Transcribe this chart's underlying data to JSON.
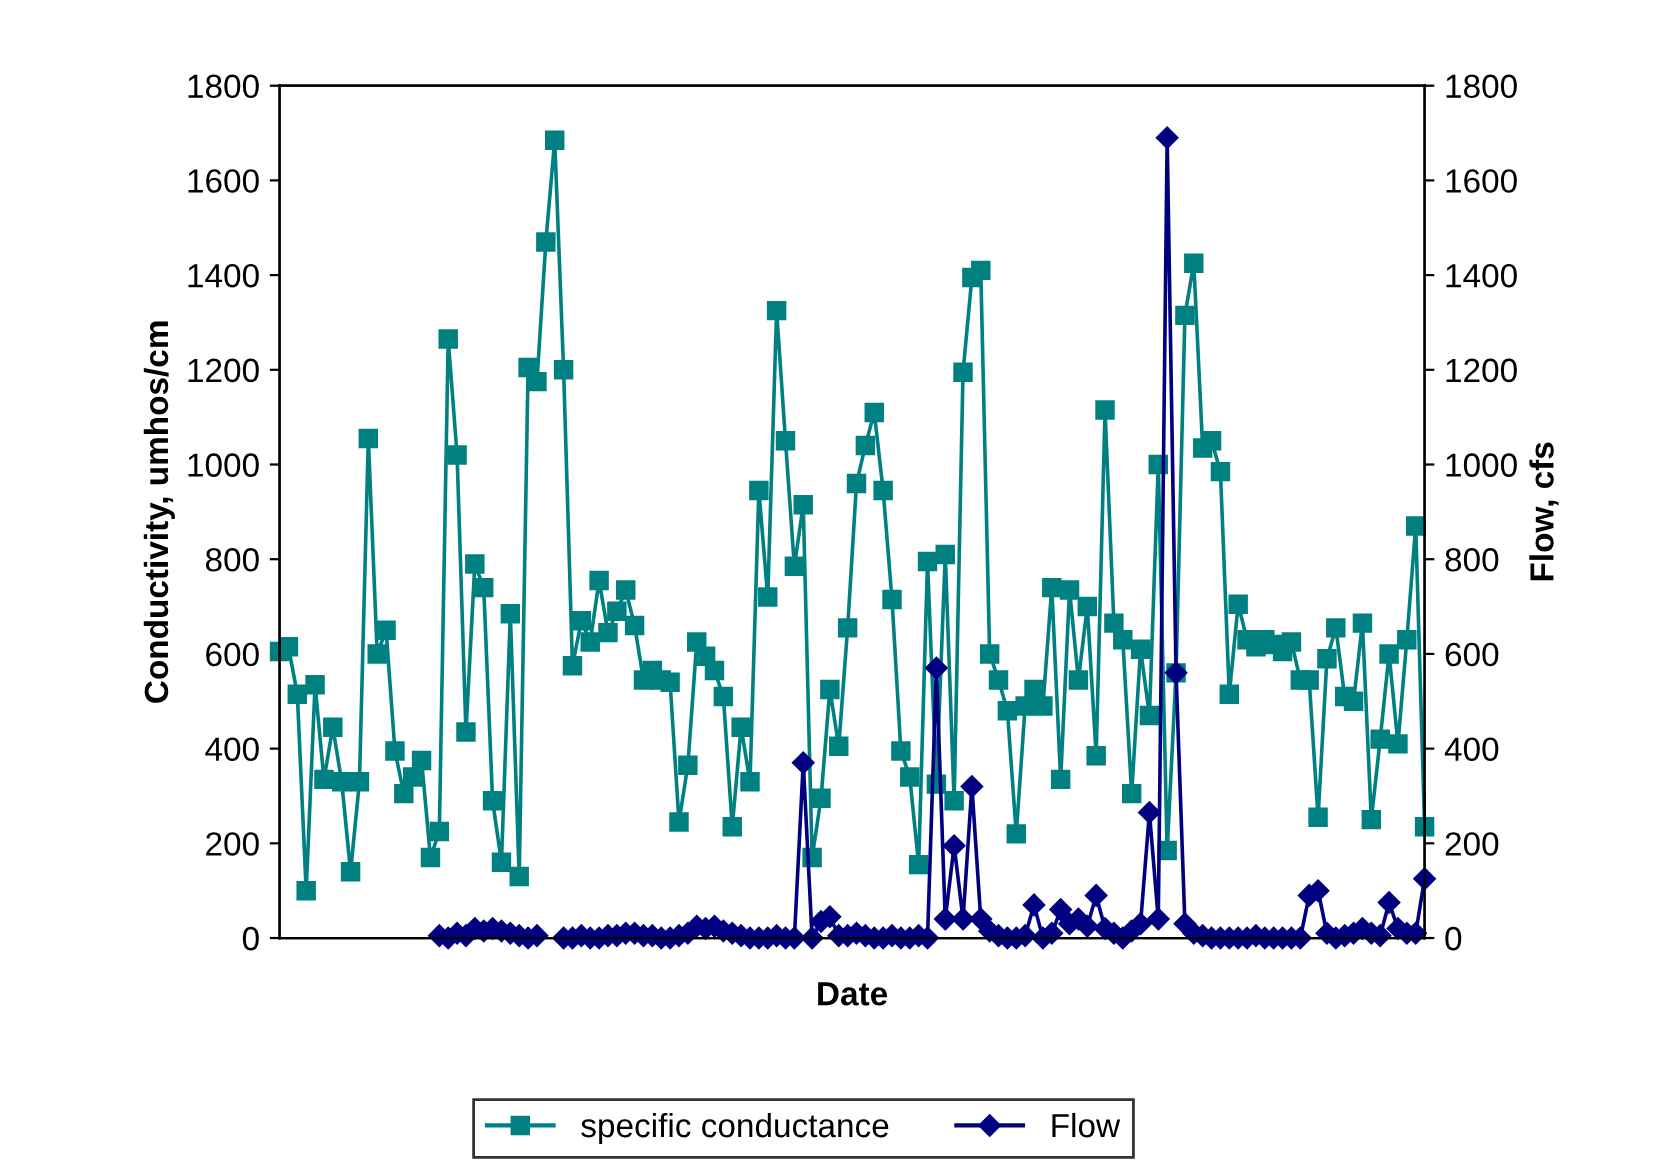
{
  "chart_data": {
    "type": "line",
    "xlabel": "Date",
    "ylabel": "Conductivity, umhos/cm",
    "y2label": "Flow, cfs",
    "categories": [
      null,
      null,
      null,
      null,
      null,
      null,
      null,
      null,
      null,
      null,
      null,
      null,
      null,
      null,
      null,
      null,
      null,
      null,
      null,
      null,
      null,
      null,
      null,
      null,
      null,
      null,
      null,
      null,
      null,
      null,
      null,
      null,
      null,
      null,
      null,
      null,
      null,
      null,
      null,
      null,
      null,
      null,
      null,
      null,
      null,
      null,
      null,
      null,
      null,
      null,
      null,
      null,
      null,
      null,
      null,
      null,
      null,
      null,
      null,
      null,
      null,
      null,
      null,
      null,
      null,
      null,
      null,
      null,
      null,
      null,
      null,
      null,
      null,
      null,
      null,
      null,
      null,
      null,
      null,
      null,
      null,
      null,
      null,
      null,
      null,
      null,
      null,
      null,
      null,
      null,
      null,
      null,
      null,
      null,
      null,
      null,
      null,
      null,
      null,
      null,
      null,
      null,
      null,
      null,
      null,
      null,
      null,
      null,
      null,
      null,
      null,
      null,
      null,
      null,
      null,
      null,
      null,
      null,
      null,
      null,
      null,
      null,
      null,
      null,
      null,
      null,
      null,
      null,
      null,
      null
    ],
    "ylim": [
      0,
      1800
    ],
    "yticks": [
      0,
      200,
      400,
      600,
      800,
      1000,
      1200,
      1400,
      1600,
      1800
    ],
    "y2lim": [
      0,
      1800
    ],
    "y2ticks": [
      0,
      200,
      400,
      600,
      800,
      1000,
      1200,
      1400,
      1600,
      1800
    ],
    "grid": false,
    "legend": "bottom",
    "series": [
      {
        "name": "specific conductance",
        "color": "#008080",
        "marker": "square",
        "values": [
          605,
          615,
          515,
          100,
          535,
          335,
          445,
          330,
          140,
          330,
          1055,
          600,
          650,
          395,
          305,
          340,
          375,
          170,
          225,
          1265,
          1020,
          435,
          790,
          740,
          290,
          160,
          685,
          130,
          1205,
          1175,
          1470,
          1685,
          1200,
          575,
          670,
          625,
          755,
          645,
          690,
          735,
          660,
          545,
          565,
          545,
          540,
          245,
          365,
          625,
          595,
          565,
          510,
          235,
          445,
          330,
          945,
          720,
          1325,
          1050,
          785,
          915,
          170,
          295,
          525,
          405,
          655,
          960,
          1040,
          1110,
          945,
          715,
          395,
          340,
          155,
          795,
          325,
          810,
          290,
          1195,
          1395,
          1410,
          600,
          545,
          480,
          220,
          490,
          525,
          490,
          740,
          335,
          735,
          545,
          700,
          385,
          1115,
          665,
          630,
          305,
          610,
          470,
          1000,
          185,
          560,
          1315,
          1425,
          1035,
          1050,
          985,
          515,
          705,
          630,
          615,
          630,
          620,
          605,
          625,
          545,
          545,
          255,
          590,
          655,
          510,
          500,
          665,
          250,
          420,
          600,
          410,
          630,
          870,
          235
        ]
      },
      {
        "name": "Flow",
        "color": "#000080",
        "marker": "diamond",
        "axis": "y2",
        "values": [
          null,
          null,
          null,
          null,
          null,
          null,
          null,
          null,
          null,
          null,
          null,
          null,
          null,
          null,
          null,
          null,
          null,
          null,
          5,
          0,
          10,
          5,
          20,
          15,
          20,
          15,
          10,
          5,
          0,
          5,
          null,
          null,
          0,
          0,
          5,
          0,
          0,
          5,
          5,
          10,
          10,
          5,
          5,
          0,
          0,
          5,
          10,
          25,
          20,
          25,
          15,
          10,
          5,
          0,
          0,
          0,
          5,
          0,
          0,
          370,
          0,
          35,
          45,
          5,
          5,
          10,
          5,
          0,
          0,
          5,
          0,
          0,
          5,
          0,
          570,
          40,
          195,
          40,
          320,
          40,
          15,
          5,
          0,
          0,
          5,
          70,
          0,
          10,
          60,
          30,
          40,
          25,
          90,
          20,
          10,
          0,
          15,
          30,
          265,
          40,
          1690,
          560,
          30,
          10,
          5,
          0,
          0,
          0,
          0,
          0,
          5,
          0,
          0,
          0,
          0,
          0,
          90,
          100,
          10,
          0,
          5,
          10,
          20,
          10,
          5,
          75,
          20,
          10,
          10,
          125
        ]
      }
    ]
  }
}
